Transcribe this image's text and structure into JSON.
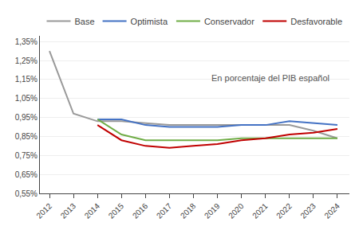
{
  "chart_data": {
    "type": "line",
    "annotation": "En porcentaje del PIB español",
    "x": [
      2012,
      2013,
      2014,
      2015,
      2016,
      2017,
      2018,
      2019,
      2020,
      2021,
      2022,
      2023,
      2024
    ],
    "series": [
      {
        "name": "Base",
        "color": "#999999",
        "values": [
          1.3,
          0.97,
          0.93,
          0.93,
          0.92,
          0.91,
          0.91,
          0.91,
          0.91,
          0.91,
          0.91,
          0.88,
          0.84
        ]
      },
      {
        "name": "Optimista",
        "color": "#4472c4",
        "values": [
          null,
          null,
          0.94,
          0.94,
          0.91,
          0.9,
          0.9,
          0.9,
          0.91,
          0.91,
          0.93,
          0.92,
          0.91
        ]
      },
      {
        "name": "Conservador",
        "color": "#70ad47",
        "values": [
          null,
          null,
          0.94,
          0.86,
          0.83,
          0.83,
          0.83,
          0.83,
          0.84,
          0.84,
          0.84,
          0.84,
          0.84
        ]
      },
      {
        "name": "Desfavorable",
        "color": "#c00000",
        "values": [
          null,
          null,
          0.91,
          0.83,
          0.8,
          0.79,
          0.8,
          0.81,
          0.83,
          0.84,
          0.86,
          0.87,
          0.89
        ]
      }
    ],
    "xlim": [
      2011.6,
      2024.5
    ],
    "xticks": [
      2012,
      2013,
      2014,
      2015,
      2016,
      2017,
      2018,
      2019,
      2020,
      2021,
      2022,
      2023,
      2024
    ],
    "ylim": [
      0.55,
      1.38
    ],
    "yticks": [
      {
        "value": 0.55,
        "label": "0,55%"
      },
      {
        "value": 0.65,
        "label": "0,65%"
      },
      {
        "value": 0.75,
        "label": "0,75%"
      },
      {
        "value": 0.85,
        "label": "0,85%"
      },
      {
        "value": 0.95,
        "label": "0,95%"
      },
      {
        "value": 1.05,
        "label": "1,05%"
      },
      {
        "value": 1.15,
        "label": "1,15%"
      },
      {
        "value": 1.25,
        "label": "1,25%"
      },
      {
        "value": 1.35,
        "label": "1,35%"
      }
    ],
    "grid": true,
    "legend": "top"
  }
}
